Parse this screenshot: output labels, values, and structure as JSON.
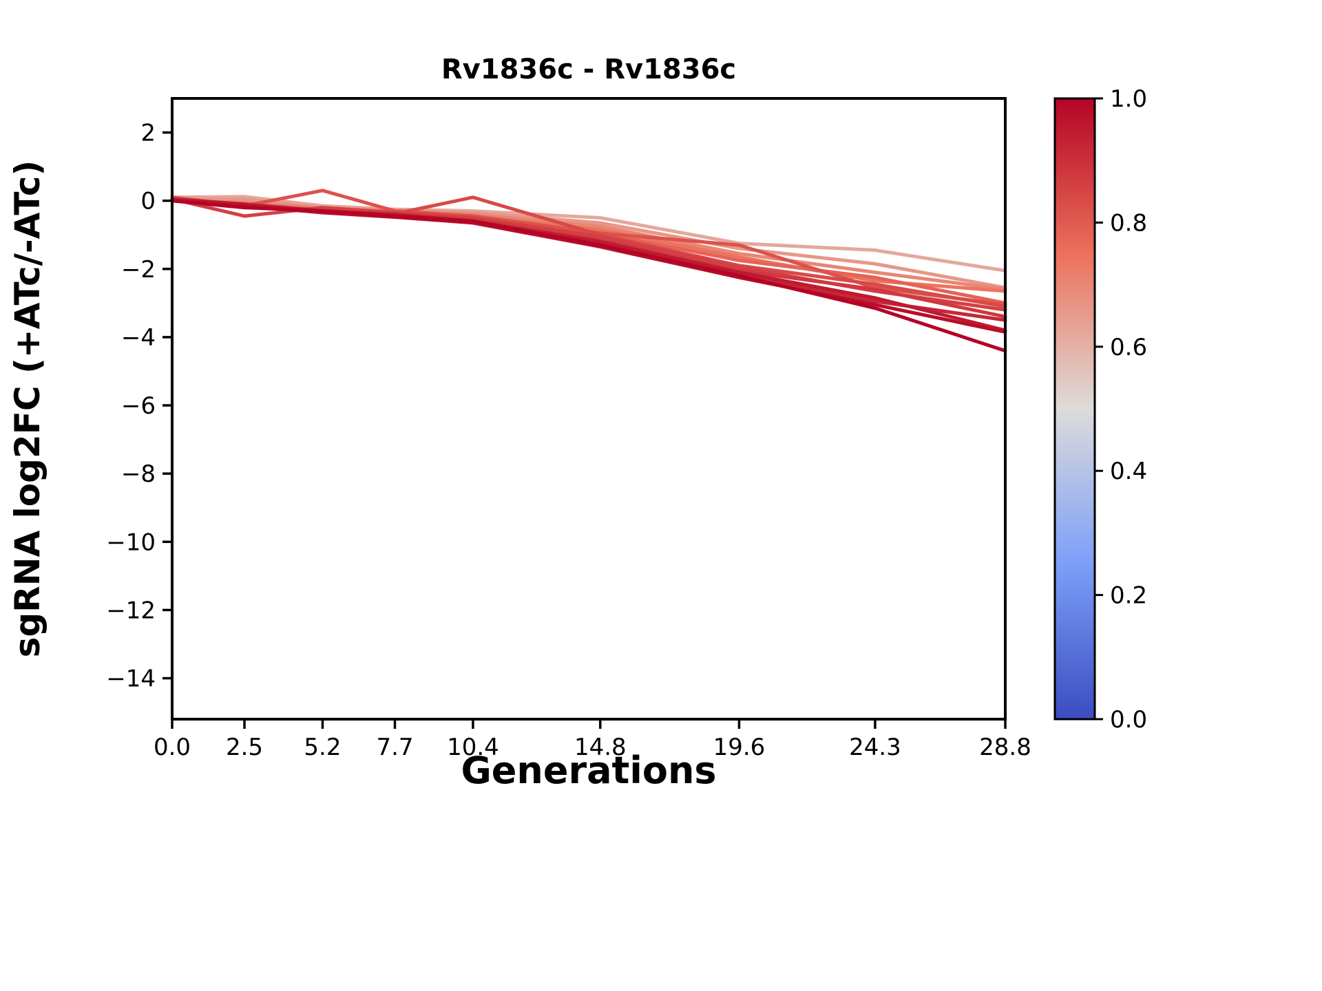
{
  "figure": {
    "title": "Rv1836c - Rv1836c",
    "xlabel": "Generations",
    "ylabel": "sgRNA log2FC (+ATc/-ATc)"
  },
  "chart_data": {
    "type": "line",
    "title": "Rv1836c - Rv1836c",
    "xlabel": "Generations",
    "ylabel": "sgRNA log2FC (+ATc/-ATc)",
    "x": [
      0.0,
      2.5,
      5.2,
      7.7,
      10.4,
      14.8,
      19.6,
      24.3,
      28.8
    ],
    "xtick_labels": [
      "0.0",
      "2.5",
      "5.2",
      "7.7",
      "10.4",
      "14.8",
      "19.6",
      "24.3",
      "28.8"
    ],
    "ytick_values": [
      2,
      0,
      -2,
      -4,
      -6,
      -8,
      -10,
      -12,
      -14
    ],
    "ytick_labels": [
      "2",
      "0",
      "−2",
      "−4",
      "−6",
      "−8",
      "−10",
      "−12",
      "−14"
    ],
    "xlim": [
      0,
      28.8
    ],
    "ylim": [
      -15.2,
      3.0
    ],
    "grid": false,
    "legend": "none",
    "series": [
      {
        "colormap_value": 0.62,
        "color": "#e4a89d",
        "values": [
          0.1,
          0.12,
          -0.15,
          -0.25,
          -0.3,
          -0.5,
          -1.25,
          -1.45,
          -2.05
        ]
      },
      {
        "colormap_value": 0.66,
        "color": "#e79788",
        "values": [
          0.05,
          0.05,
          -0.2,
          -0.28,
          -0.35,
          -0.65,
          -1.4,
          -1.85,
          -2.55
        ]
      },
      {
        "colormap_value": 0.7,
        "color": "#e98674",
        "values": [
          0.0,
          -0.05,
          -0.22,
          -0.3,
          -0.4,
          -0.75,
          -1.55,
          -2.1,
          -2.6
        ]
      },
      {
        "colormap_value": 0.74,
        "color": "#eb7460",
        "values": [
          0.05,
          -0.1,
          -0.25,
          -0.32,
          -0.45,
          -0.85,
          -1.65,
          -2.35,
          -2.65
        ]
      },
      {
        "colormap_value": 0.78,
        "color": "#e56355",
        "values": [
          0.0,
          -0.12,
          -0.28,
          -0.35,
          -0.5,
          -0.95,
          -1.75,
          -2.25,
          -3.0
        ]
      },
      {
        "colormap_value": 0.82,
        "color": "#dc524c",
        "values": [
          0.1,
          -0.15,
          0.3,
          -0.3,
          -0.45,
          -0.95,
          -1.3,
          -2.55,
          -3.05
        ]
      },
      {
        "colormap_value": 0.84,
        "color": "#d84948",
        "values": [
          0.0,
          -0.2,
          -0.25,
          -0.38,
          0.1,
          -1.0,
          -1.9,
          -2.45,
          -3.1
        ]
      },
      {
        "colormap_value": 0.86,
        "color": "#d34044",
        "values": [
          0.05,
          -0.45,
          -0.2,
          -0.35,
          -0.5,
          -1.05,
          -1.95,
          -2.65,
          -3.2
        ]
      },
      {
        "colormap_value": 0.88,
        "color": "#cf383f",
        "values": [
          0.0,
          -0.15,
          -0.3,
          -0.4,
          -0.55,
          -1.15,
          -2.05,
          -2.6,
          -3.4
        ]
      },
      {
        "colormap_value": 0.92,
        "color": "#c62737",
        "values": [
          0.02,
          -0.18,
          -0.32,
          -0.42,
          -0.6,
          -1.25,
          -2.15,
          -2.95,
          -3.5
        ]
      },
      {
        "colormap_value": 0.95,
        "color": "#bf1a31",
        "values": [
          0.05,
          -0.1,
          -0.3,
          -0.4,
          -0.6,
          -1.2,
          -2.1,
          -2.85,
          -3.8
        ]
      },
      {
        "colormap_value": 0.98,
        "color": "#b90d2a",
        "values": [
          0.0,
          -0.15,
          -0.35,
          -0.48,
          -0.65,
          -1.35,
          -2.25,
          -3.05,
          -3.85
        ]
      },
      {
        "colormap_value": 1.0,
        "color": "#b40426",
        "values": [
          0.0,
          -0.2,
          -0.3,
          -0.45,
          -0.6,
          -1.3,
          -2.2,
          -3.15,
          -4.4
        ]
      }
    ],
    "colorbar": {
      "colormap": "coolwarm",
      "min": 0.0,
      "max": 1.0,
      "tick_labels": [
        "1.0",
        "0.8",
        "0.6",
        "0.4",
        "0.2",
        "0.0"
      ],
      "tick_values": [
        1.0,
        0.8,
        0.6,
        0.4,
        0.2,
        0.0
      ],
      "gradient_stops": [
        {
          "pos": 0.0,
          "color": "#3b4cc0"
        },
        {
          "pos": 0.125,
          "color": "#5b76dc"
        },
        {
          "pos": 0.25,
          "color": "#7c9ff9"
        },
        {
          "pos": 0.375,
          "color": "#adbde9"
        },
        {
          "pos": 0.5,
          "color": "#dedcda"
        },
        {
          "pos": 0.625,
          "color": "#e5a69a"
        },
        {
          "pos": 0.75,
          "color": "#ec705b"
        },
        {
          "pos": 0.875,
          "color": "#d03a40"
        },
        {
          "pos": 1.0,
          "color": "#b40426"
        }
      ]
    }
  }
}
